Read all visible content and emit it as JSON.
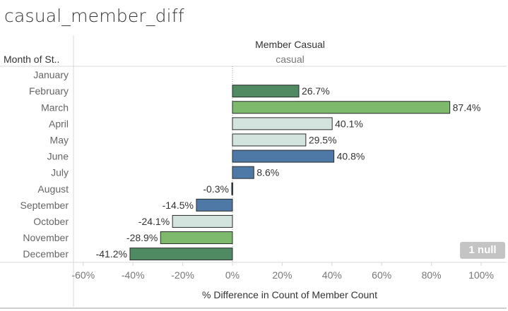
{
  "title": "casual_member_diff",
  "column_header": {
    "title": "Member Casual",
    "value": "casual"
  },
  "row_header": "Month of St..",
  "null_badge": "1 null",
  "colors": {
    "dark_green": "#4f8a63",
    "light_green": "#7dba6c",
    "light": "#d3e3dd",
    "blue": "#4e79a7",
    "dark_blue": "#2f4f74"
  },
  "chart_data": {
    "type": "bar",
    "orientation": "horizontal",
    "xlabel": "% Difference in Count of Member Count",
    "xlim": [
      -65,
      105
    ],
    "xticks": [
      -60,
      -40,
      -20,
      0,
      20,
      40,
      60,
      80,
      100
    ],
    "xtick_labels": [
      "-60%",
      "-40%",
      "-20%",
      "0%",
      "20%",
      "40%",
      "60%",
      "80%",
      "100%"
    ],
    "categories": [
      "January",
      "February",
      "March",
      "April",
      "May",
      "June",
      "July",
      "August",
      "September",
      "October",
      "November",
      "December"
    ],
    "values": [
      null,
      26.7,
      87.4,
      40.1,
      29.5,
      40.8,
      8.6,
      -0.3,
      -14.5,
      -24.1,
      -28.9,
      -41.2
    ],
    "labels": [
      "",
      "26.7%",
      "87.4%",
      "40.1%",
      "29.5%",
      "40.8%",
      "8.6%",
      "-0.3%",
      "-14.5%",
      "-24.1%",
      "-28.9%",
      "-41.2%"
    ],
    "bar_colors": [
      "",
      "#4f8a63",
      "#7dba6c",
      "#d3e3dd",
      "#d3e3dd",
      "#4e79a7",
      "#4e79a7",
      "#2f4f74",
      "#4e79a7",
      "#d3e3dd",
      "#7dba6c",
      "#4f8a63"
    ]
  }
}
